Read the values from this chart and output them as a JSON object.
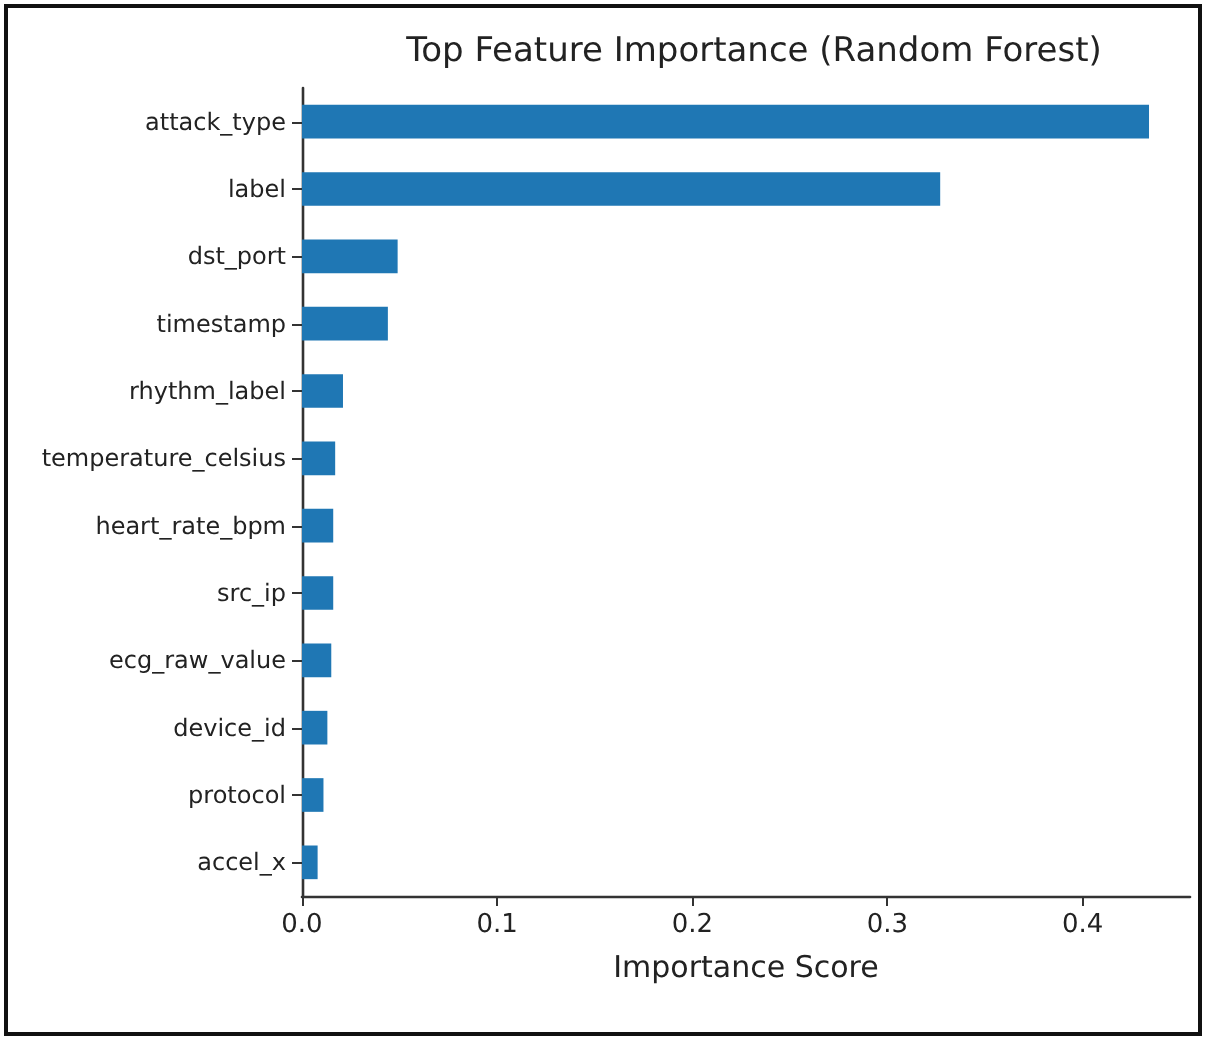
{
  "chart_data": {
    "type": "bar",
    "orientation": "horizontal",
    "title": "Top Feature Importance (Random Forest)",
    "xlabel": "Importance Score",
    "categories": [
      "attack_type",
      "label",
      "dst_port",
      "timestamp",
      "rhythm_label",
      "temperature_celsius",
      "heart_rate_bpm",
      "src_ip",
      "ecg_raw_value",
      "device_id",
      "protocol",
      "accel_x"
    ],
    "values": [
      0.434,
      0.327,
      0.049,
      0.044,
      0.021,
      0.017,
      0.016,
      0.016,
      0.015,
      0.013,
      0.011,
      0.008
    ],
    "color": "#1f77b4",
    "xlim": [
      0,
      0.455
    ],
    "xticks": [
      {
        "value": 0,
        "label": "0.0"
      },
      0.1,
      0.2,
      0.3,
      0.4
    ],
    "grid": false
  }
}
